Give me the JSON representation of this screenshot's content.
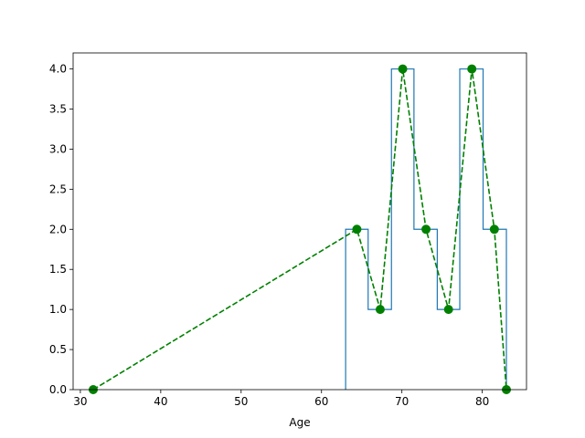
{
  "chart_data": {
    "type": "line",
    "title": "",
    "xlabel": "Age",
    "ylabel": "",
    "xlim": [
      29.1,
      85.5
    ],
    "ylim": [
      0,
      4.2
    ],
    "xticks": [
      30,
      40,
      50,
      60,
      70,
      80
    ],
    "xtick_labels": [
      "30",
      "40",
      "50",
      "60",
      "70",
      "80"
    ],
    "yticks": [
      0,
      0.5,
      1.0,
      1.5,
      2.0,
      2.5,
      3.0,
      3.5,
      4.0
    ],
    "ytick_labels": [
      "0.0",
      "0.5",
      "1.0",
      "1.5",
      "2.0",
      "2.5",
      "3.0",
      "3.5",
      "4.0"
    ],
    "grid": false,
    "series": [
      {
        "kind": "step-histogram",
        "color": "#1f77b4",
        "bin_edges": [
          63.0,
          65.8,
          68.7,
          71.5,
          74.4,
          77.2,
          80.1,
          83.0
        ],
        "counts": [
          2,
          1,
          4,
          2,
          1,
          4,
          2
        ]
      },
      {
        "kind": "dashed-line-with-markers",
        "color": "#008000",
        "x": [
          31.6,
          64.4,
          67.3,
          70.1,
          73.0,
          75.8,
          78.7,
          81.5,
          83.0
        ],
        "y": [
          0,
          2,
          1,
          4,
          2,
          1,
          4,
          2,
          0
        ]
      }
    ]
  }
}
